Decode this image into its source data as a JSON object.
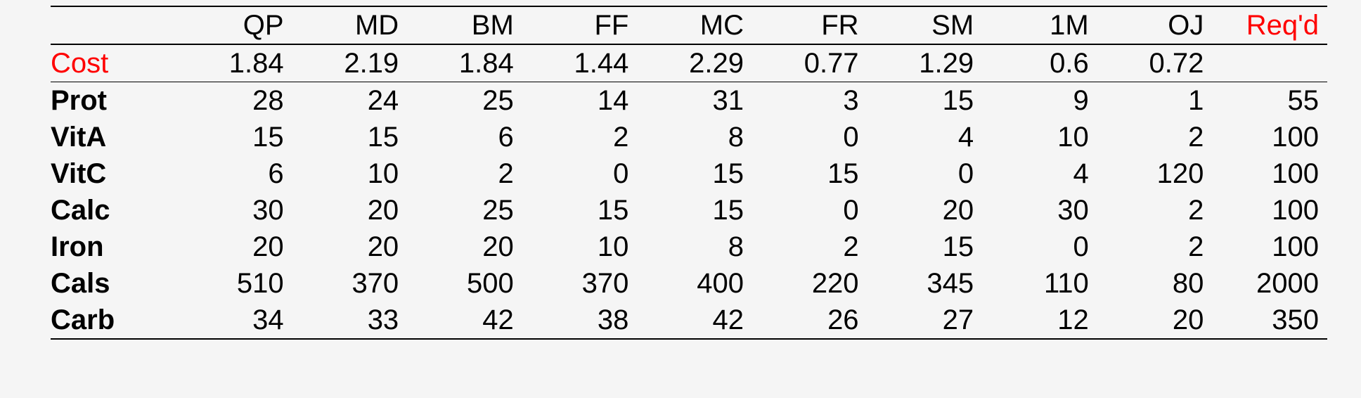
{
  "table": {
    "type": "table",
    "background_color": "#f5f5f5",
    "rule_color": "#000000",
    "font_family": "Segoe UI, Helvetica Neue, Arial, sans-serif",
    "font_size_pt": 30,
    "header_fontweight": 400,
    "rowlabel_fontweight": 700,
    "text_color": "#000000",
    "highlight_color": "#ff0000",
    "column_alignment": [
      "left",
      "right",
      "right",
      "right",
      "right",
      "right",
      "right",
      "right",
      "right",
      "right",
      "right"
    ],
    "columns": [
      "",
      "QP",
      "MD",
      "BM",
      "FF",
      "MC",
      "FR",
      "SM",
      "1M",
      "OJ",
      "Req'd"
    ],
    "column_styles": {
      "10": {
        "color": "#ff0000"
      }
    },
    "rows": [
      {
        "label": "Cost",
        "label_bold": false,
        "label_color": "#ff0000",
        "values": [
          "1.84",
          "2.19",
          "1.84",
          "1.44",
          "2.29",
          "0.77",
          "1.29",
          "0.6",
          "0.72",
          ""
        ]
      },
      {
        "label": "Prot",
        "label_bold": true,
        "label_color": "#000000",
        "values": [
          "28",
          "24",
          "25",
          "14",
          "31",
          "3",
          "15",
          "9",
          "1",
          "55"
        ]
      },
      {
        "label": "VitA",
        "label_bold": true,
        "label_color": "#000000",
        "values": [
          "15",
          "15",
          "6",
          "2",
          "8",
          "0",
          "4",
          "10",
          "2",
          "100"
        ]
      },
      {
        "label": "VitC",
        "label_bold": true,
        "label_color": "#000000",
        "values": [
          "6",
          "10",
          "2",
          "0",
          "15",
          "15",
          "0",
          "4",
          "120",
          "100"
        ]
      },
      {
        "label": "Calc",
        "label_bold": true,
        "label_color": "#000000",
        "values": [
          "30",
          "20",
          "25",
          "15",
          "15",
          "0",
          "20",
          "30",
          "2",
          "100"
        ]
      },
      {
        "label": "Iron",
        "label_bold": true,
        "label_color": "#000000",
        "values": [
          "20",
          "20",
          "20",
          "10",
          "8",
          "2",
          "15",
          "0",
          "2",
          "100"
        ]
      },
      {
        "label": "Cals",
        "label_bold": true,
        "label_color": "#000000",
        "values": [
          "510",
          "370",
          "500",
          "370",
          "400",
          "220",
          "345",
          "110",
          "80",
          "2000"
        ]
      },
      {
        "label": "Carb",
        "label_bold": true,
        "label_color": "#000000",
        "values": [
          "34",
          "33",
          "42",
          "38",
          "42",
          "26",
          "27",
          "12",
          "20",
          "350"
        ]
      }
    ],
    "rules": {
      "above_header": "thick",
      "below_header": "thick",
      "below_cost_row": "thin",
      "bottom": "thick"
    }
  }
}
